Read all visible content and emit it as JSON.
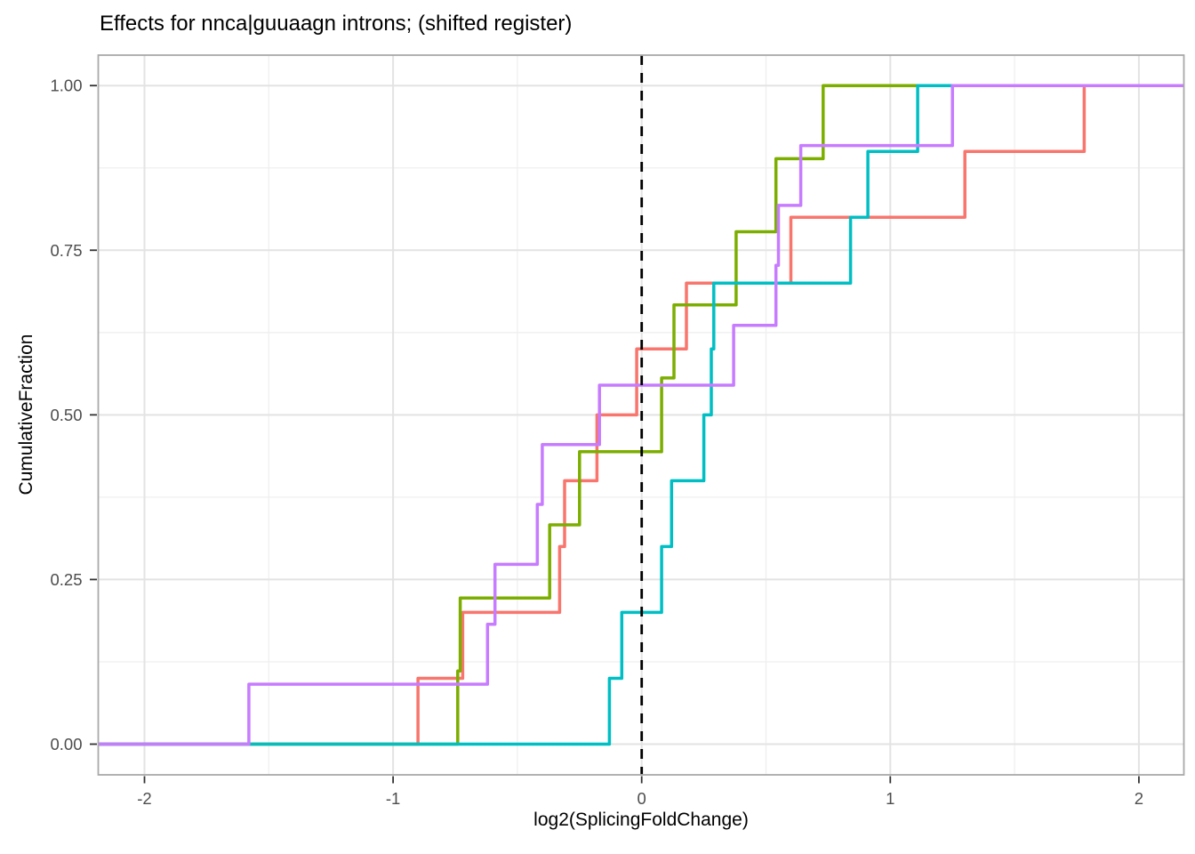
{
  "title": "Effects for nnca|guuaagn introns; (shifted register)",
  "x_axis": {
    "title": "log2(SplicingFoldChange)",
    "range": [
      -2.186,
      2.181
    ],
    "major_ticks": [
      -2,
      -1,
      0,
      1,
      2
    ],
    "minor_ticks": [
      -1.5,
      -0.5,
      0.5,
      1.5
    ],
    "tick_labels": [
      "-2",
      "-1",
      "0",
      "1",
      "2"
    ]
  },
  "y_axis": {
    "title": "CumulativeFraction",
    "range": [
      -0.0466,
      1.0462
    ],
    "major_ticks": [
      0,
      0.25,
      0.5,
      0.75,
      1.0
    ],
    "minor_ticks": [
      0.125,
      0.375,
      0.625,
      0.875
    ],
    "tick_labels": [
      "0.00",
      "0.25",
      "0.50",
      "0.75",
      "1.00"
    ]
  },
  "reference_line": {
    "x": 0,
    "style": "dashed",
    "color": "#000000"
  },
  "style": {
    "background": "#FFFFFF",
    "grid_major": "#E3E3E3",
    "grid_minor": "#EFEFEF",
    "panel_border": "#A9A9A9",
    "tick": "#333333",
    "tick_label": "#4D4D4D",
    "title_color": "#000000",
    "axis_title_color": "#000000"
  },
  "chart_data": {
    "type": "line",
    "subtype": "ecdf_step",
    "title": "Effects for nnca|guuaagn introns; (shifted register)",
    "xlabel": "log2(SplicingFoldChange)",
    "ylabel": "CumulativeFraction",
    "xlim": [
      -2.19,
      2.18
    ],
    "ylim": [
      -0.05,
      1.05
    ],
    "grid": true,
    "legend": "none",
    "reference_line_x": 0,
    "series": [
      {
        "name": "salmon",
        "color": "#F8766D",
        "n_points": 10,
        "steps": [
          [
            -0.9,
            0.1
          ],
          [
            -0.72,
            0.2
          ],
          [
            -0.33,
            0.3
          ],
          [
            -0.31,
            0.4
          ],
          [
            -0.18,
            0.5
          ],
          [
            -0.02,
            0.6
          ],
          [
            0.18,
            0.7
          ],
          [
            0.6,
            0.8
          ],
          [
            1.3,
            0.9
          ],
          [
            1.78,
            1.0
          ]
        ]
      },
      {
        "name": "olive-green",
        "color": "#7CAE00",
        "n_points": 9,
        "steps": [
          [
            -0.74,
            0.111
          ],
          [
            -0.73,
            0.222
          ],
          [
            -0.37,
            0.333
          ],
          [
            -0.25,
            0.444
          ],
          [
            0.08,
            0.556
          ],
          [
            0.13,
            0.667
          ],
          [
            0.38,
            0.778
          ],
          [
            0.54,
            0.889
          ],
          [
            0.73,
            1.0
          ]
        ]
      },
      {
        "name": "teal",
        "color": "#00BFC4",
        "n_points": 10,
        "steps": [
          [
            -0.13,
            0.1
          ],
          [
            -0.08,
            0.2
          ],
          [
            0.08,
            0.3
          ],
          [
            0.12,
            0.4
          ],
          [
            0.25,
            0.5
          ],
          [
            0.28,
            0.6
          ],
          [
            0.29,
            0.7
          ],
          [
            0.84,
            0.8
          ],
          [
            0.91,
            0.9
          ],
          [
            1.11,
            1.0
          ]
        ]
      },
      {
        "name": "purple",
        "color": "#C77CFF",
        "n_points": 11,
        "steps": [
          [
            -1.58,
            0.091
          ],
          [
            -0.62,
            0.182
          ],
          [
            -0.59,
            0.273
          ],
          [
            -0.42,
            0.364
          ],
          [
            -0.4,
            0.455
          ],
          [
            -0.17,
            0.545
          ],
          [
            0.37,
            0.636
          ],
          [
            0.54,
            0.727
          ],
          [
            0.55,
            0.818
          ],
          [
            0.64,
            0.909
          ],
          [
            1.25,
            1.0
          ]
        ]
      }
    ]
  }
}
